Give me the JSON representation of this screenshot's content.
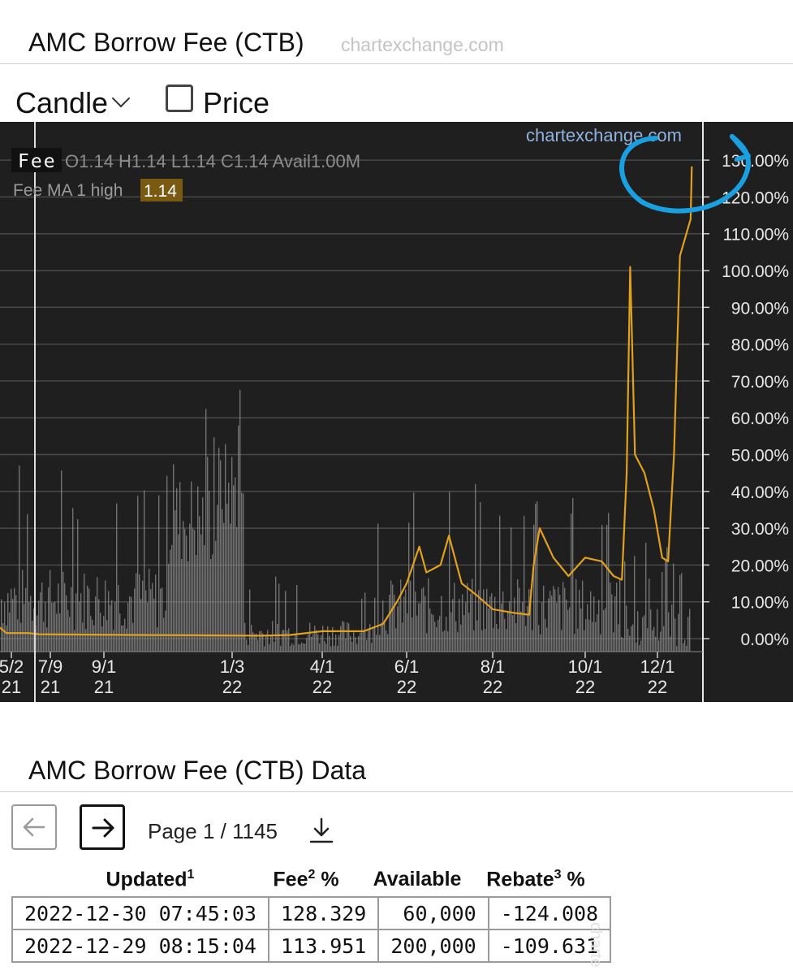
{
  "header": {
    "title": "AMC Borrow Fee (CTB)",
    "site": "chartexchange.com"
  },
  "controls": {
    "chart_type": "Candle",
    "price_label": "Price",
    "price_checked": false
  },
  "chart_overlay": {
    "watermark": "chartexchange.com",
    "series_label": "Fee",
    "ohlc": "O1.14 H1.14 L1.14 C1.14 Avail1.00M",
    "ma_label": "Fee MA 1 high",
    "ma_value": "1.14"
  },
  "colors": {
    "fee_line": "#e0a020",
    "bars": "#8e8e8e",
    "background": "#1f1f1f",
    "highlight_circle": "#1aa0e0",
    "ma_badge": "#7a5a10"
  },
  "chart_data": {
    "type": "line",
    "title": "",
    "ylabel": "",
    "ylim": [
      0,
      140
    ],
    "y_ticks": [
      "0.00%",
      "10.00%",
      "20.00%",
      "30.00%",
      "40.00%",
      "50.00%",
      "60.00%",
      "70.00%",
      "80.00%",
      "90.00%",
      "100.00%",
      "110.00%",
      "120.00%",
      "130.00%"
    ],
    "x_ticks": [
      {
        "date": "2021-05-02",
        "label": [
          "5/2",
          "21"
        ]
      },
      {
        "date": "2021-07-09",
        "label": [
          "7/9",
          "21"
        ]
      },
      {
        "date": "2021-09-01",
        "label": [
          "9/1",
          "21"
        ]
      },
      {
        "date": "2022-01-03",
        "label": [
          "1/3",
          "22"
        ]
      },
      {
        "date": "2022-04-01",
        "label": [
          "4/1",
          "22"
        ]
      },
      {
        "date": "2022-06-01",
        "label": [
          "6/1",
          "22"
        ]
      },
      {
        "date": "2022-08-01",
        "label": [
          "8/1",
          "22"
        ]
      },
      {
        "date": "2022-10-01",
        "label": [
          "10/1",
          "22"
        ]
      },
      {
        "date": "2022-12-01",
        "label": [
          "12/1",
          "22"
        ]
      }
    ],
    "series": [
      {
        "values": [
          {
            "x": "2021-06-01",
            "y": 1.5
          },
          {
            "x": "2021-06-20",
            "y": 1.2
          },
          {
            "x": "2021-08-01",
            "y": 1.1
          },
          {
            "x": "2021-10-01",
            "y": 1.0
          },
          {
            "x": "2021-12-01",
            "y": 0.9
          },
          {
            "x": "2022-02-01",
            "y": 0.8
          },
          {
            "x": "2022-03-01",
            "y": 1.0
          },
          {
            "x": "2022-04-01",
            "y": 2.0
          },
          {
            "x": "2022-05-01",
            "y": 2.0
          },
          {
            "x": "2022-05-15",
            "y": 4.0
          },
          {
            "x": "2022-05-25",
            "y": 10.0
          },
          {
            "x": "2022-06-01",
            "y": 15.0
          },
          {
            "x": "2022-06-10",
            "y": 25.0
          },
          {
            "x": "2022-06-15",
            "y": 18.0
          },
          {
            "x": "2022-06-25",
            "y": 20.0
          },
          {
            "x": "2022-07-01",
            "y": 28.0
          },
          {
            "x": "2022-07-10",
            "y": 15.0
          },
          {
            "x": "2022-07-20",
            "y": 12.0
          },
          {
            "x": "2022-08-01",
            "y": 8.0
          },
          {
            "x": "2022-08-15",
            "y": 7.0
          },
          {
            "x": "2022-08-25",
            "y": 6.5
          },
          {
            "x": "2022-08-28",
            "y": 20.0
          },
          {
            "x": "2022-09-01",
            "y": 30.0
          },
          {
            "x": "2022-09-10",
            "y": 22.0
          },
          {
            "x": "2022-09-20",
            "y": 17.0
          },
          {
            "x": "2022-10-01",
            "y": 22.0
          },
          {
            "x": "2022-10-15",
            "y": 21.0
          },
          {
            "x": "2022-10-25",
            "y": 17.0
          },
          {
            "x": "2022-11-01",
            "y": 16.0
          },
          {
            "x": "2022-11-05",
            "y": 45.0
          },
          {
            "x": "2022-11-08",
            "y": 101.0
          },
          {
            "x": "2022-11-12",
            "y": 50.0
          },
          {
            "x": "2022-11-20",
            "y": 45.0
          },
          {
            "x": "2022-11-28",
            "y": 35.0
          },
          {
            "x": "2022-12-05",
            "y": 22.0
          },
          {
            "x": "2022-12-10",
            "y": 21.0
          },
          {
            "x": "2022-12-15",
            "y": 50.0
          },
          {
            "x": "2022-12-20",
            "y": 104.0
          },
          {
            "x": "2022-12-29",
            "y": 114.0
          },
          {
            "x": "2022-12-30",
            "y": 128.3
          }
        ]
      }
    ]
  },
  "data_section": {
    "title": "AMC Borrow Fee (CTB) Data",
    "page_label": "Page 1 / 1145",
    "columns": [
      {
        "label": "Updated",
        "sup": "1",
        "suffix": ""
      },
      {
        "label": "Fee",
        "sup": "2",
        "suffix": " %"
      },
      {
        "label": "Available",
        "sup": "",
        "suffix": ""
      },
      {
        "label": "Rebate",
        "sup": "3",
        "suffix": " %"
      }
    ],
    "rows": [
      [
        "2022-12-30 07:45:03",
        "128.329",
        "60,000",
        "-124.008"
      ],
      [
        "2022-12-29 08:15:04",
        "113.951",
        "200,000",
        "-109.631"
      ]
    ],
    "side_watermark": "charte"
  }
}
